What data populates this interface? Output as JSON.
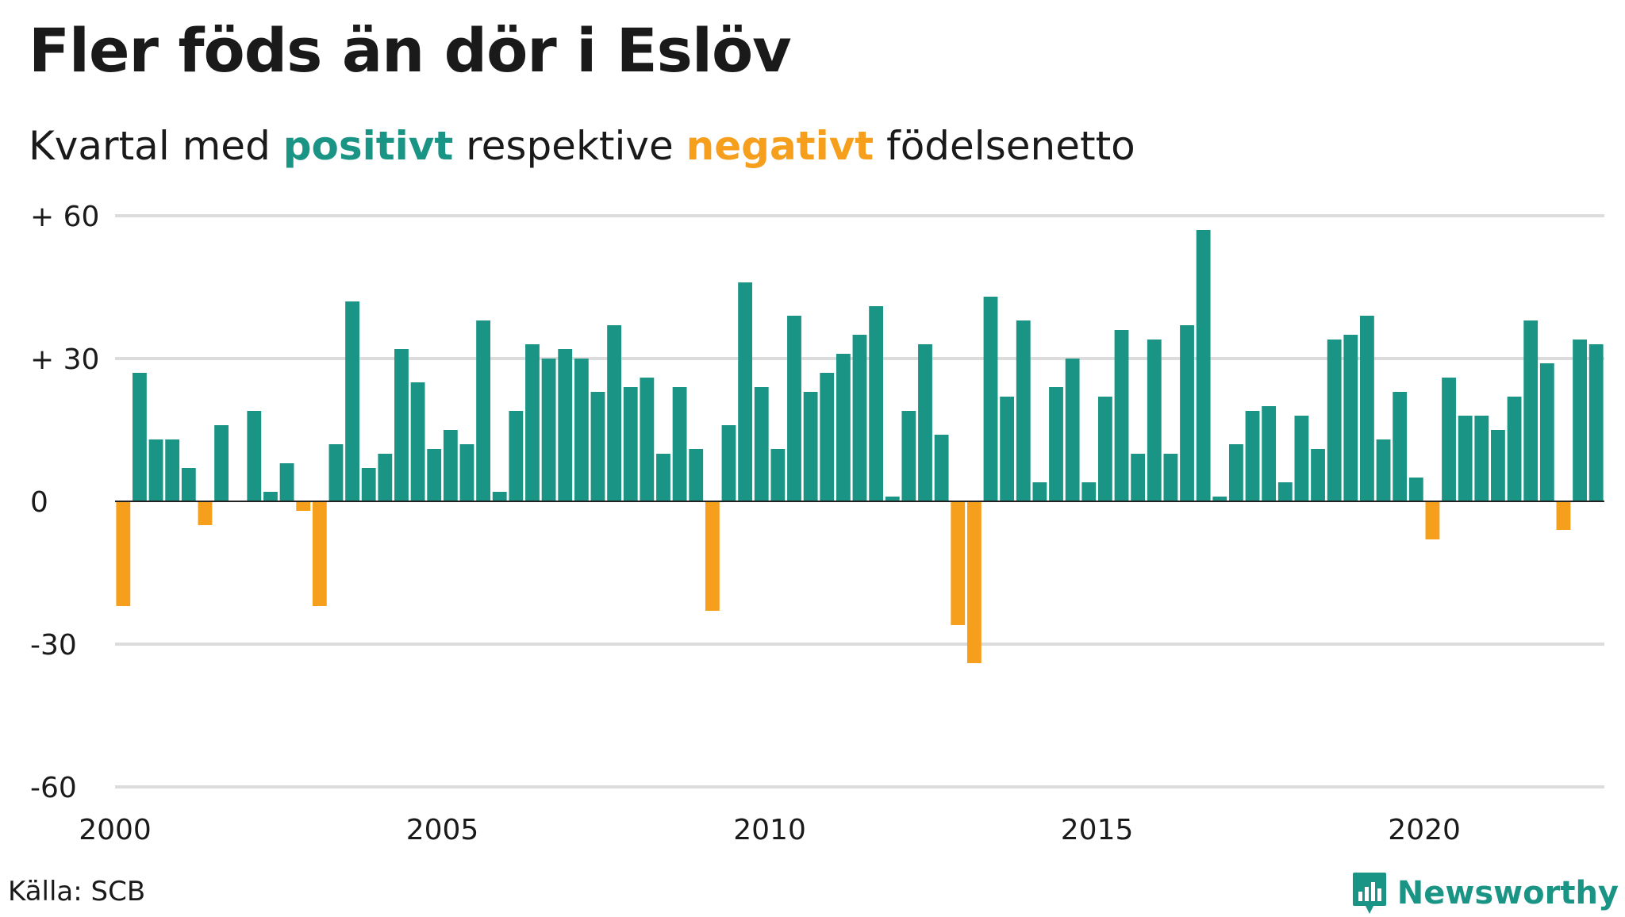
{
  "title": "Fler föds än dör i Eslöv",
  "subtitle": {
    "prefix": "Kvartal med ",
    "positive_word": "positivt",
    "middle": " respektive ",
    "negative_word": "negativt",
    "suffix": " födelsenetto"
  },
  "source": "Källa: SCB",
  "brand": "Newsworthy",
  "colors": {
    "positive": "#1a9585",
    "negative": "#f59f1c",
    "grid": "#dcdcdc",
    "zero_line": "#222222"
  },
  "chart_data": {
    "type": "bar",
    "x_start": 2000,
    "periods_per_year": 4,
    "x_tick_labels": [
      "2000",
      "2005",
      "2010",
      "2015",
      "2020"
    ],
    "y_tick_labels": [
      "+ 60",
      "+ 30",
      "0",
      "-30",
      "-60"
    ],
    "y_ticks": [
      60,
      30,
      0,
      -30,
      -60
    ],
    "ylim": [
      -60,
      60
    ],
    "grid": true,
    "values": [
      -22,
      27,
      13,
      13,
      7,
      -5,
      16,
      0,
      19,
      2,
      8,
      -2,
      -22,
      12,
      42,
      7,
      10,
      32,
      25,
      11,
      15,
      12,
      38,
      2,
      19,
      33,
      30,
      32,
      30,
      23,
      37,
      24,
      26,
      10,
      24,
      11,
      -23,
      16,
      46,
      24,
      11,
      39,
      23,
      27,
      31,
      35,
      41,
      1,
      19,
      33,
      14,
      -26,
      -34,
      43,
      22,
      38,
      4,
      24,
      30,
      4,
      22,
      36,
      10,
      34,
      10,
      37,
      57,
      1,
      12,
      19,
      20,
      4,
      18,
      11,
      34,
      35,
      39,
      13,
      23,
      5,
      -8,
      26,
      18,
      18,
      15,
      22,
      38,
      29,
      -6,
      34,
      33
    ]
  }
}
